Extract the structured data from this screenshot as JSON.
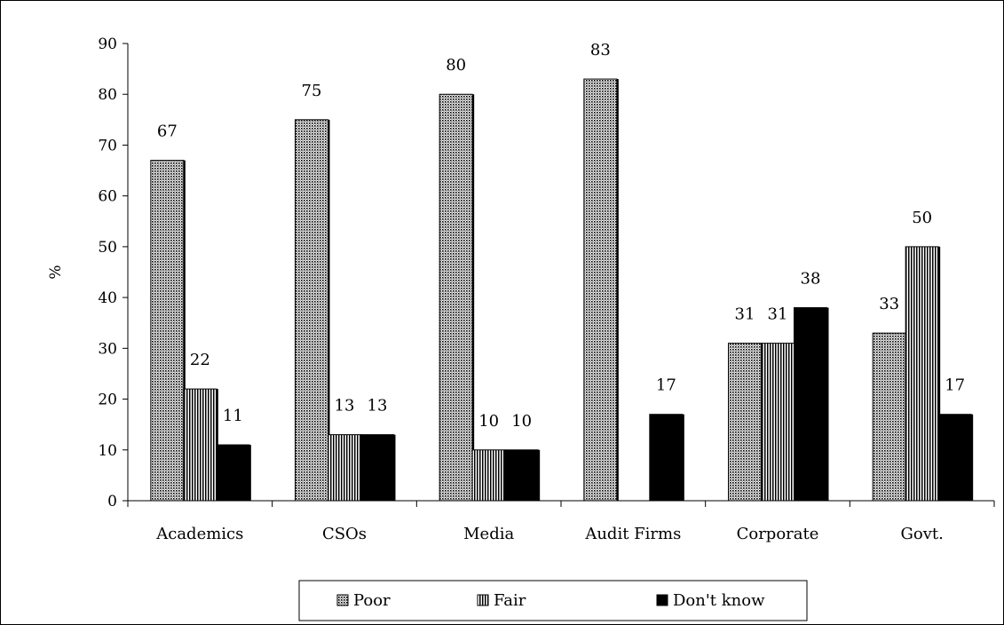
{
  "chart_data": {
    "type": "bar",
    "title": "",
    "xlabel": "",
    "ylabel": "%",
    "ylim": [
      0,
      90
    ],
    "yticks": [
      0,
      10,
      20,
      30,
      40,
      50,
      60,
      70,
      80,
      90
    ],
    "categories": [
      "Academics",
      "CSOs",
      "Media",
      "Audit Firms",
      "Corporate",
      "Govt."
    ],
    "series": [
      {
        "name": "Poor",
        "values": [
          67,
          75,
          80,
          83,
          31,
          33
        ],
        "pattern": "dots"
      },
      {
        "name": "Fair",
        "values": [
          22,
          13,
          10,
          null,
          31,
          50
        ],
        "pattern": "vlines"
      },
      {
        "name": "Don't know",
        "values": [
          11,
          13,
          10,
          17,
          38,
          17
        ],
        "pattern": "solid"
      }
    ],
    "legend": "bottom",
    "grid": false
  }
}
